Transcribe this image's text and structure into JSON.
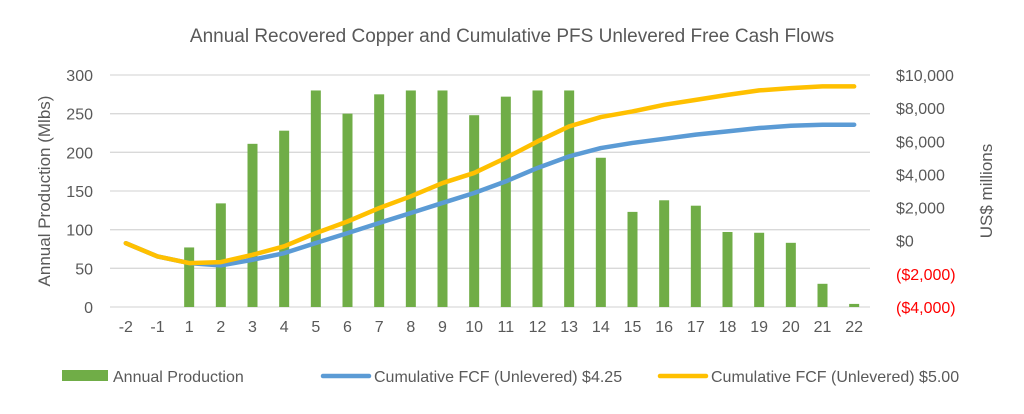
{
  "chart_data": {
    "type": "bar+line",
    "title": "Annual Recovered Copper and Cumulative PFS Unlevered Free Cash Flows",
    "xlabel": "",
    "ylabel": "Annual Production (Mlbs)",
    "y2label": "US$ millions",
    "categories": [
      "-2",
      "-1",
      "1",
      "2",
      "3",
      "4",
      "5",
      "6",
      "7",
      "8",
      "9",
      "10",
      "11",
      "12",
      "13",
      "14",
      "15",
      "16",
      "17",
      "18",
      "19",
      "20",
      "21",
      "22"
    ],
    "ylim": [
      0,
      300
    ],
    "yticks": [
      0,
      50,
      100,
      150,
      200,
      250,
      300
    ],
    "y2lim": [
      -4000,
      10000
    ],
    "y2ticks": [
      {
        "value": 10000,
        "label": "$10,000"
      },
      {
        "value": 8000,
        "label": "$8,000"
      },
      {
        "value": 6000,
        "label": "$6,000"
      },
      {
        "value": 4000,
        "label": "$4,000"
      },
      {
        "value": 2000,
        "label": "$2,000"
      },
      {
        "value": 0,
        "label": "$0"
      },
      {
        "value": -2000,
        "label": "($2,000)"
      },
      {
        "value": -4000,
        "label": "($4,000)"
      }
    ],
    "grid": true,
    "legend_position": "bottom",
    "series": [
      {
        "name": "Annual Production",
        "type": "bar",
        "axis": "left",
        "color": "#70ad47",
        "values": [
          0,
          0,
          77,
          134,
          211,
          228,
          280,
          250,
          275,
          280,
          280,
          248,
          272,
          280,
          280,
          193,
          123,
          138,
          131,
          97,
          96,
          83,
          30,
          4
        ]
      },
      {
        "name": "Cumulative FCF (Unlevered) $4.25",
        "type": "line",
        "axis": "right",
        "color": "#5b9bd5",
        "values": [
          -150,
          -950,
          -1350,
          -1490,
          -1150,
          -750,
          -140,
          460,
          1070,
          1670,
          2280,
          2880,
          3580,
          4390,
          5090,
          5590,
          5900,
          6150,
          6400,
          6600,
          6800,
          6940,
          7000,
          7000
        ]
      },
      {
        "name": "Cumulative FCF (Unlevered) $5.00",
        "type": "line",
        "axis": "right",
        "color": "#ffc000",
        "values": [
          -150,
          -950,
          -1350,
          -1290,
          -850,
          -340,
          460,
          1160,
          1970,
          2680,
          3480,
          4090,
          5000,
          5990,
          6900,
          7460,
          7800,
          8200,
          8500,
          8800,
          9070,
          9210,
          9310,
          9310
        ]
      }
    ],
    "negative_label_color": "#ff0000"
  }
}
